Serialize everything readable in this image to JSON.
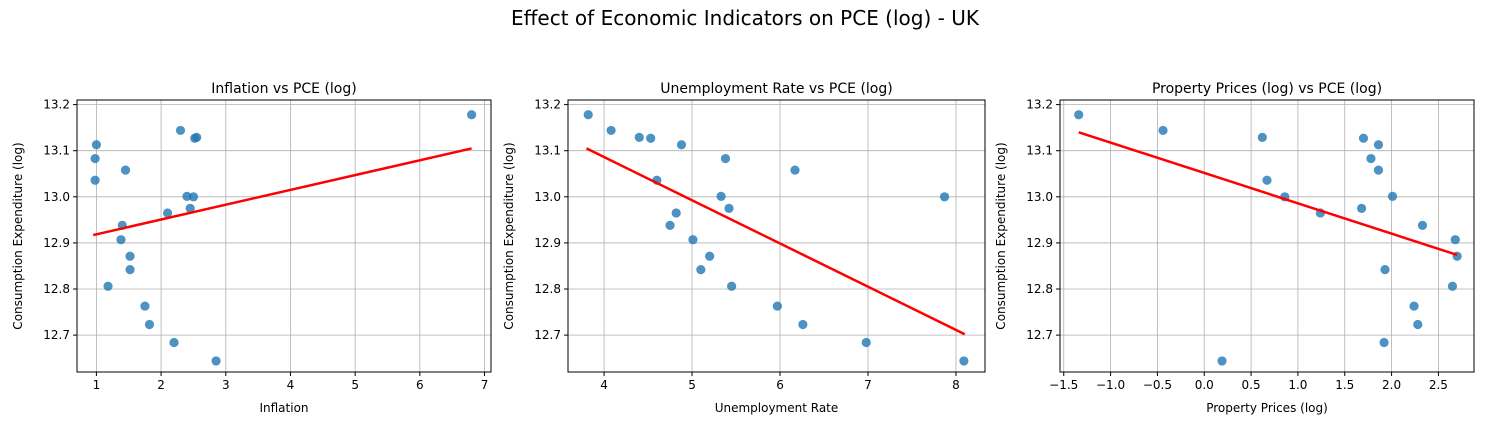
{
  "figure": {
    "title": "Effect of Economic Indicators on PCE (log) - UK"
  },
  "colors": {
    "point": "#1f77b4",
    "line": "#ff0000",
    "grid": "#b0b0b0"
  },
  "chart_data": [
    {
      "type": "scatter",
      "title": "Inflation vs PCE (log)",
      "xlabel": "Inflation",
      "ylabel": "Consumption Expenditure (log)",
      "xlim": [
        0.7,
        7.1
      ],
      "ylim": [
        12.62,
        13.21
      ],
      "xticks": [
        1,
        2,
        3,
        4,
        5,
        6,
        7
      ],
      "yticks": [
        12.7,
        12.8,
        12.9,
        13.0,
        13.1,
        13.2
      ],
      "grid": true,
      "points": [
        [
          1.0,
          13.113
        ],
        [
          0.98,
          13.083
        ],
        [
          0.98,
          13.036
        ],
        [
          1.45,
          13.058
        ],
        [
          1.4,
          12.938
        ],
        [
          1.38,
          12.907
        ],
        [
          1.52,
          12.871
        ],
        [
          1.52,
          12.842
        ],
        [
          1.18,
          12.806
        ],
        [
          1.75,
          12.763
        ],
        [
          1.82,
          12.723
        ],
        [
          2.3,
          13.144
        ],
        [
          2.52,
          13.127
        ],
        [
          2.55,
          13.129
        ],
        [
          2.4,
          13.001
        ],
        [
          2.5,
          13.0
        ],
        [
          2.1,
          12.965
        ],
        [
          2.45,
          12.975
        ],
        [
          2.2,
          12.684
        ],
        [
          2.85,
          12.644
        ],
        [
          6.8,
          13.178
        ]
      ],
      "fit_line": {
        "x": [
          0.95,
          6.8
        ],
        "y": [
          12.917,
          13.105
        ]
      }
    },
    {
      "type": "scatter",
      "title": "Unemployment Rate vs PCE (log)",
      "xlabel": "Unemployment Rate",
      "ylabel": "Consumption Expenditure (log)",
      "xlim": [
        3.59,
        8.33
      ],
      "ylim": [
        12.62,
        13.21
      ],
      "xticks": [
        4,
        5,
        6,
        7,
        8
      ],
      "yticks": [
        12.7,
        12.8,
        12.9,
        13.0,
        13.1,
        13.2
      ],
      "grid": true,
      "points": [
        [
          3.82,
          13.178
        ],
        [
          4.08,
          13.144
        ],
        [
          4.4,
          13.129
        ],
        [
          4.53,
          13.127
        ],
        [
          4.88,
          13.113
        ],
        [
          4.6,
          13.036
        ],
        [
          5.38,
          13.083
        ],
        [
          6.17,
          13.058
        ],
        [
          5.33,
          13.001
        ],
        [
          5.42,
          12.975
        ],
        [
          4.82,
          12.965
        ],
        [
          4.75,
          12.938
        ],
        [
          5.01,
          12.907
        ],
        [
          5.2,
          12.871
        ],
        [
          5.1,
          12.842
        ],
        [
          5.45,
          12.806
        ],
        [
          5.97,
          12.763
        ],
        [
          6.26,
          12.723
        ],
        [
          6.98,
          12.684
        ],
        [
          7.87,
          13.0
        ],
        [
          8.09,
          12.644
        ]
      ],
      "fit_line": {
        "x": [
          3.8,
          8.1
        ],
        "y": [
          13.105,
          12.702
        ]
      }
    },
    {
      "type": "scatter",
      "title": "Property Prices (log) vs PCE (log)",
      "xlabel": "Property Prices (log)",
      "ylabel": "Consumption Expenditure (log)",
      "xlim": [
        -1.54,
        2.88
      ],
      "ylim": [
        12.62,
        13.21
      ],
      "xticks": [
        -1.5,
        -1.0,
        -0.5,
        0.0,
        0.5,
        1.0,
        1.5,
        2.0,
        2.5
      ],
      "ytick_labels_decimals": 1,
      "yticks": [
        12.7,
        12.8,
        12.9,
        13.0,
        13.1,
        13.2
      ],
      "grid": true,
      "points": [
        [
          -1.34,
          13.178
        ],
        [
          -0.44,
          13.144
        ],
        [
          0.62,
          13.129
        ],
        [
          1.7,
          13.127
        ],
        [
          1.86,
          13.113
        ],
        [
          1.78,
          13.083
        ],
        [
          0.67,
          13.036
        ],
        [
          1.86,
          13.058
        ],
        [
          0.86,
          13.0
        ],
        [
          2.01,
          13.001
        ],
        [
          1.68,
          12.975
        ],
        [
          1.24,
          12.965
        ],
        [
          2.33,
          12.938
        ],
        [
          2.68,
          12.907
        ],
        [
          2.7,
          12.871
        ],
        [
          1.93,
          12.842
        ],
        [
          2.65,
          12.806
        ],
        [
          2.24,
          12.763
        ],
        [
          2.28,
          12.723
        ],
        [
          1.92,
          12.684
        ],
        [
          0.19,
          12.644
        ]
      ],
      "fit_line": {
        "x": [
          -1.34,
          2.7
        ],
        "y": [
          13.14,
          12.874
        ]
      }
    }
  ]
}
